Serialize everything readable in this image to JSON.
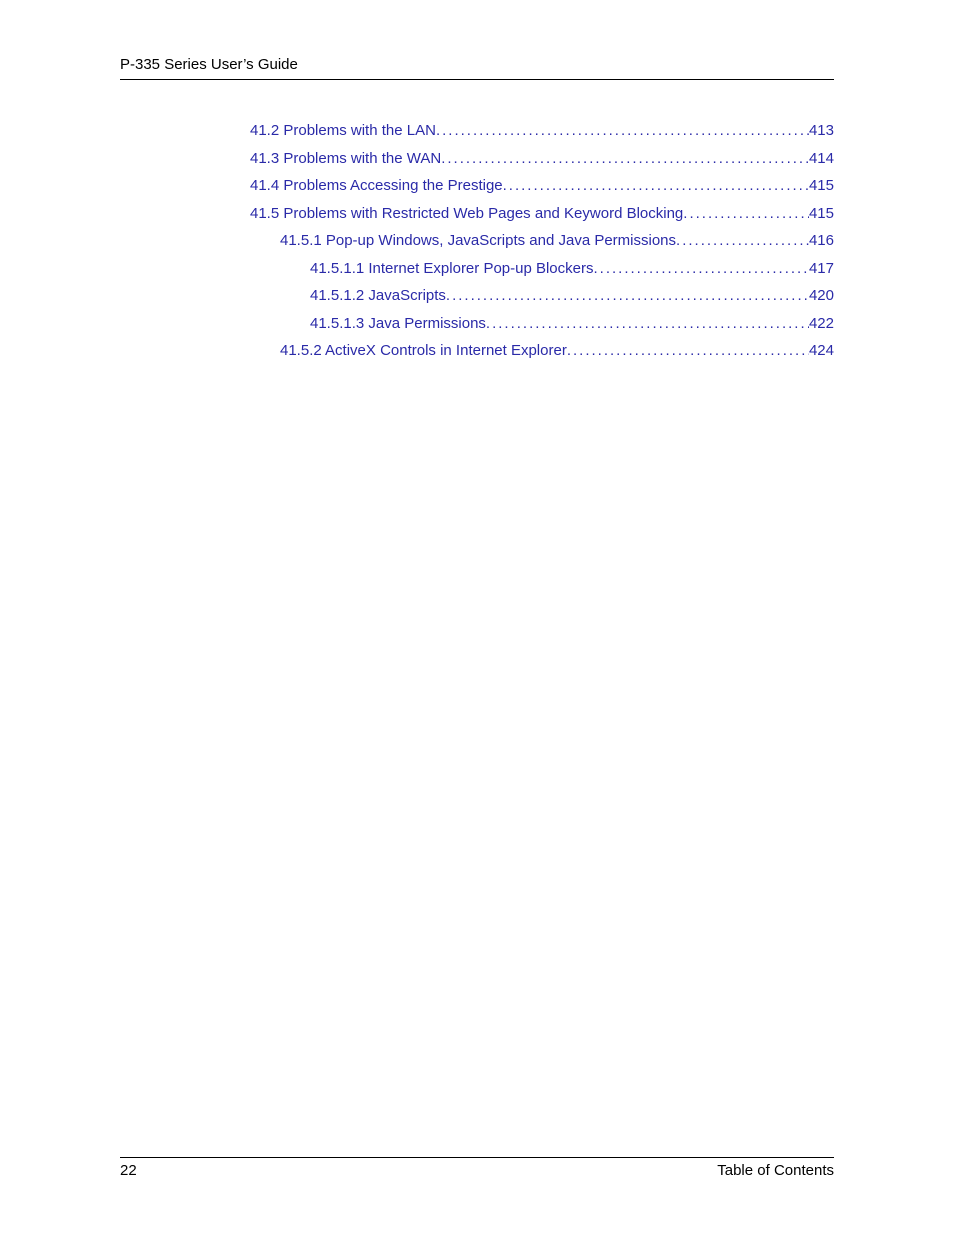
{
  "header": {
    "running_title": "P-335 Series User’s Guide"
  },
  "link_color": "#2a2aa8",
  "text_color": "#000000",
  "toc": {
    "entries": [
      {
        "indent": 0,
        "label": "41.2 Problems with the LAN ",
        "page": "413"
      },
      {
        "indent": 0,
        "label": "41.3 Problems with the WAN  ",
        "page": "414"
      },
      {
        "indent": 0,
        "label": "41.4 Problems Accessing the Prestige  ",
        "page": "415"
      },
      {
        "indent": 0,
        "label": "41.5 Problems with Restricted Web Pages and Keyword Blocking  ",
        "page": "415"
      },
      {
        "indent": 1,
        "label": "41.5.1 Pop-up Windows, JavaScripts and Java Permissions ",
        "page": "416"
      },
      {
        "indent": 2,
        "label": "41.5.1.1 Internet Explorer Pop-up Blockers  ",
        "page": "417"
      },
      {
        "indent": 2,
        "label": "41.5.1.2 JavaScripts ",
        "page": "420"
      },
      {
        "indent": 2,
        "label": "41.5.1.3 Java Permissions  ",
        "page": "422"
      },
      {
        "indent": 1,
        "label": "41.5.2 ActiveX Controls in Internet Explorer ",
        "page": "424"
      }
    ]
  },
  "footer": {
    "page_number": "22",
    "section": "Table of Contents"
  }
}
